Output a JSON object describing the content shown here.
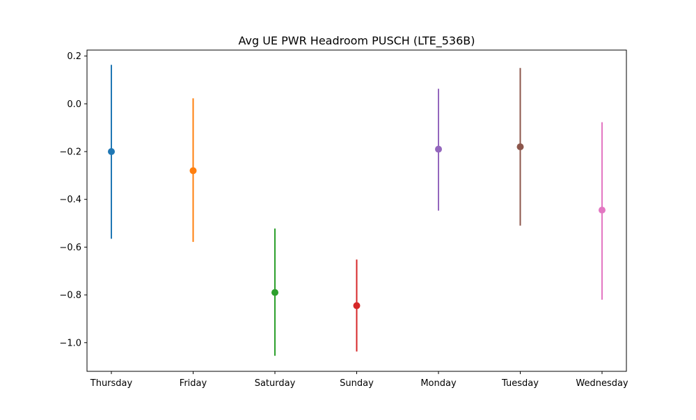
{
  "chart_data": {
    "type": "errorbar",
    "title": "Avg UE PWR Headroom PUSCH (LTE_536B)",
    "xlabel": "",
    "ylabel": "",
    "categories": [
      "Thursday",
      "Friday",
      "Saturday",
      "Sunday",
      "Monday",
      "Tuesday",
      "Wednesday"
    ],
    "series": [
      {
        "category": "Thursday",
        "mean": -0.2,
        "low": -0.565,
        "high": 0.163,
        "color": "#1f77b4"
      },
      {
        "category": "Friday",
        "mean": -0.28,
        "low": -0.578,
        "high": 0.023,
        "color": "#ff7f0e"
      },
      {
        "category": "Saturday",
        "mean": -0.79,
        "low": -1.055,
        "high": -0.522,
        "color": "#2ca02c"
      },
      {
        "category": "Sunday",
        "mean": -0.845,
        "low": -1.037,
        "high": -0.652,
        "color": "#d62728"
      },
      {
        "category": "Monday",
        "mean": -0.19,
        "low": -0.447,
        "high": 0.063,
        "color": "#9467bd"
      },
      {
        "category": "Tuesday",
        "mean": -0.18,
        "low": -0.51,
        "high": 0.15,
        "color": "#8c564b"
      },
      {
        "category": "Wednesday",
        "mean": -0.445,
        "low": -0.82,
        "high": -0.077,
        "color": "#e377c2"
      }
    ],
    "yticks": [
      0.2,
      0.0,
      -0.2,
      -0.4,
      -0.6,
      -0.8,
      -1.0
    ],
    "ytick_labels": [
      "0.2",
      "0.0",
      "−0.2",
      "−0.4",
      "−0.6",
      "−0.8",
      "−1.0"
    ],
    "ylim": [
      -1.12,
      0.225
    ],
    "grid": false,
    "legend": "none"
  }
}
